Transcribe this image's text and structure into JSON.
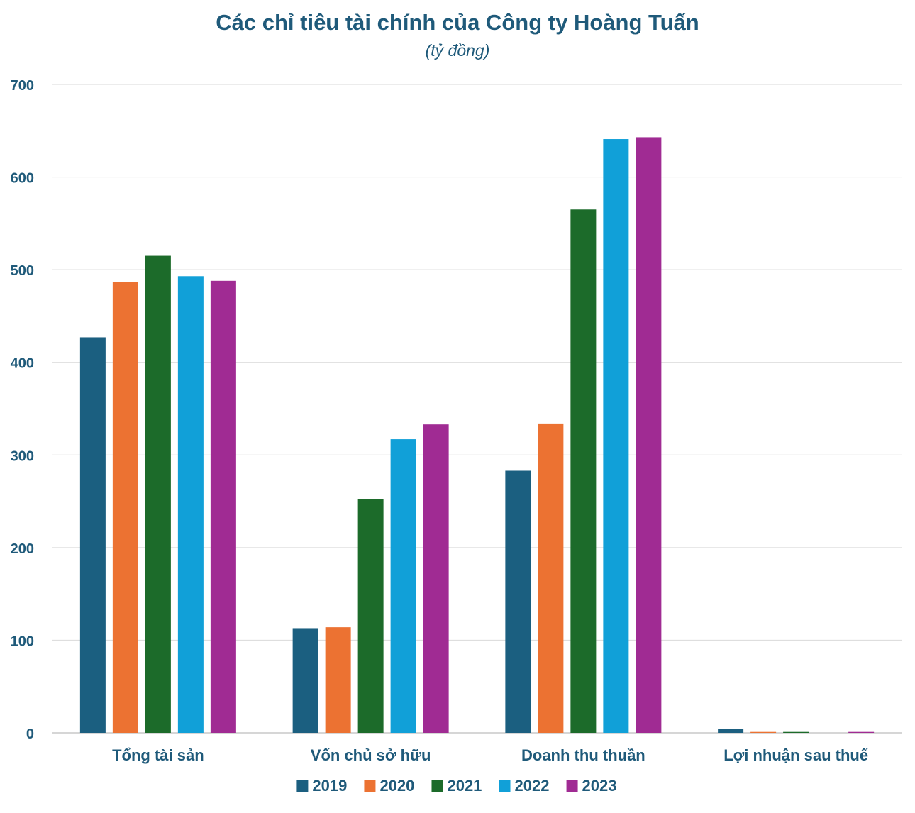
{
  "chart_data": {
    "type": "bar",
    "title": "Các chỉ tiêu tài chính của Công ty Hoàng Tuấn",
    "subtitle": "(tỷ đồng)",
    "xlabel": "",
    "ylabel": "",
    "ylim": [
      0,
      700
    ],
    "yticks": [
      0,
      100,
      200,
      300,
      400,
      500,
      600,
      700
    ],
    "grid": true,
    "legend_position": "bottom",
    "categories": [
      "Tổng tài sản",
      "Vốn chủ sở hữu",
      "Doanh thu thuần",
      "Lợi nhuận sau thuế"
    ],
    "series": [
      {
        "name": "2019",
        "color": "#1b5f80",
        "values": [
          427,
          113,
          283,
          4
        ]
      },
      {
        "name": "2020",
        "color": "#ec7232",
        "values": [
          487,
          114,
          334,
          1
        ]
      },
      {
        "name": "2021",
        "color": "#1c6b2a",
        "values": [
          515,
          252,
          565,
          1
        ]
      },
      {
        "name": "2022",
        "color": "#11a0d8",
        "values": [
          493,
          317,
          641,
          0
        ]
      },
      {
        "name": "2023",
        "color": "#a02b93",
        "values": [
          488,
          333,
          643,
          1
        ]
      }
    ]
  }
}
